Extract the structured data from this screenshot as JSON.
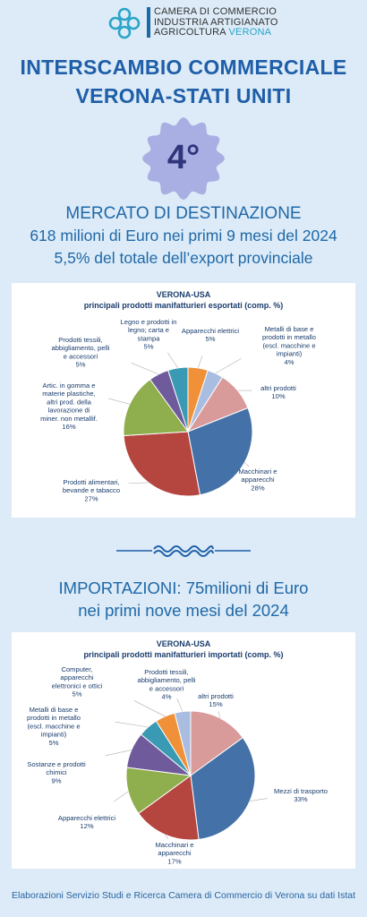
{
  "header": {
    "org_line1": "CAMERA DI COMMERCIO",
    "org_line2": "INDUSTRIA ARTIGIANATO",
    "org_line3a": "AGRICOLTURA ",
    "org_line3b": "VERONA"
  },
  "title_line1": "INTERSCAMBIO COMMERCIALE",
  "title_line2": "VERONA-STATI UNITI",
  "badge_text": "4°",
  "export_section": {
    "line1": "MERCATO DI DESTINAZIONE",
    "line2": "618 milioni di Euro nei primi 9 mesi del 2024",
    "line3": "5,5% del totale dell’export provinciale"
  },
  "import_section": {
    "line1": "IMPORTAZIONI:  75milioni di Euro",
    "line2": "nei primi nove mesi del 2024"
  },
  "footer": "Elaborazioni Servizio Studi e Ricerca Camera di Commercio di Verona su dati Istat",
  "colors": {
    "title": "#1f5ea8",
    "badge": "#a9aee3",
    "wave": "#1f5ea8"
  },
  "chart_data": [
    {
      "type": "pie",
      "title": "VERONA-USA",
      "subtitle": "principali  prodotti manifatturieri esportati (comp. %)",
      "slices": [
        {
          "label": [
            "Apparecchi elettrici",
            "5%"
          ],
          "value": 5,
          "color": "#f0913a"
        },
        {
          "label": [
            "Metalli di base e",
            "prodotti in metallo",
            "(escl. macchine e",
            "impianti)",
            "4%"
          ],
          "value": 4,
          "color": "#a9bde0"
        },
        {
          "label": [
            "altri prodotti",
            "10%"
          ],
          "value": 10,
          "color": "#d99a9a"
        },
        {
          "label": [
            "Macchinari e",
            "apparecchi",
            "28%"
          ],
          "value": 28,
          "color": "#4472a8"
        },
        {
          "label": [
            "Prodotti alimentari,",
            "bevande e tabacco",
            "27%"
          ],
          "value": 27,
          "color": "#b5453f"
        },
        {
          "label": [
            "Artic. in gomma e",
            "materie plastiche,",
            "altri prod. della",
            "lavorazione di",
            "miner. non metallif.",
            "16%"
          ],
          "value": 16,
          "color": "#8fae4d"
        },
        {
          "label": [
            "Prodotti tessili,",
            "abbigliamento, pelli",
            "e accessori",
            "5%"
          ],
          "value": 5,
          "color": "#6f5a9b"
        },
        {
          "label": [
            "Legno e prodotti in",
            "legno; carta e",
            "stampa",
            "5%"
          ],
          "value": 5,
          "color": "#3a99b3"
        }
      ]
    },
    {
      "type": "pie",
      "title": "VERONA-USA",
      "subtitle": "principali  prodotti manifatturieri importati (comp. %)",
      "slices": [
        {
          "label": [
            "altri prodotti",
            "15%"
          ],
          "value": 15,
          "color": "#d99a9a"
        },
        {
          "label": [
            "Mezzi di trasporto",
            "33%"
          ],
          "value": 33,
          "color": "#4472a8"
        },
        {
          "label": [
            "Macchinari e",
            "apparecchi",
            "17%"
          ],
          "value": 17,
          "color": "#b5453f"
        },
        {
          "label": [
            "Apparecchi elettrici",
            "12%"
          ],
          "value": 12,
          "color": "#8fae4d"
        },
        {
          "label": [
            "Sostanze e prodotti",
            "chimici",
            "9%"
          ],
          "value": 9,
          "color": "#6f5a9b"
        },
        {
          "label": [
            "Metalli di base e",
            "prodotti in metallo",
            "(escl. macchine e",
            "impianti)",
            "5%"
          ],
          "value": 5,
          "color": "#3a99b3"
        },
        {
          "label": [
            "Computer,",
            "apparecchi",
            "elettronici e ottici",
            "5%"
          ],
          "value": 5,
          "color": "#f0913a"
        },
        {
          "label": [
            "Prodotti tessili,",
            "abbigliamento, pelli",
            "e accessori",
            "4%"
          ],
          "value": 4,
          "color": "#a9bde0"
        }
      ]
    }
  ]
}
